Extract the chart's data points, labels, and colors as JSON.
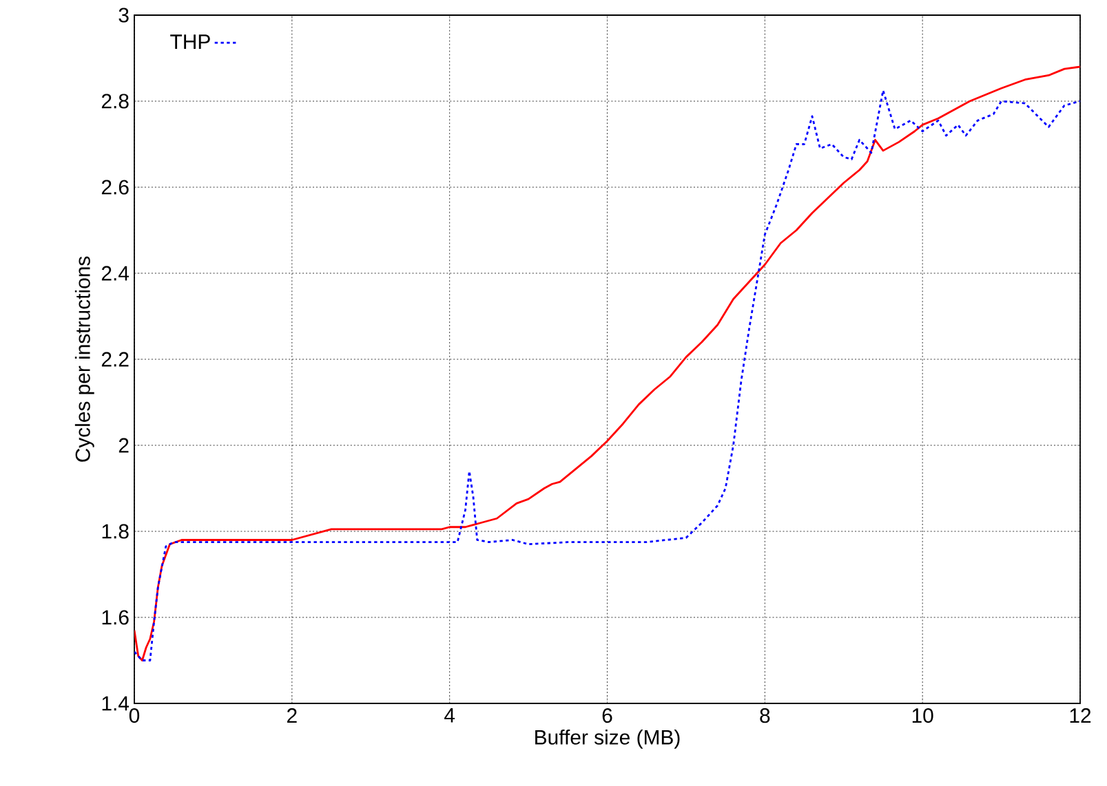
{
  "chart_data": {
    "type": "line",
    "xlabel": "Buffer size (MB)",
    "ylabel": "Cycles per instructions",
    "xlim": [
      0,
      12
    ],
    "ylim": [
      1.4,
      3
    ],
    "xticks": [
      0,
      2,
      4,
      6,
      8,
      10,
      12
    ],
    "yticks": [
      1.4,
      1.6,
      1.8,
      2,
      2.2,
      2.4,
      2.6,
      2.8,
      3
    ],
    "grid": true,
    "legend": "top left",
    "marker": "none",
    "series": [
      {
        "color": "#ff0000",
        "line_style": "solid",
        "x": [
          0,
          0.05,
          0.1,
          0.15,
          0.2,
          0.25,
          0.3,
          0.35,
          0.45,
          0.6,
          1,
          1.5,
          2,
          2.5,
          3,
          3.5,
          3.9,
          4,
          4.2,
          4.3,
          4.4,
          4.6,
          4.85,
          5,
          5.2,
          5.3,
          5.4,
          5.6,
          5.8,
          6,
          6.2,
          6.4,
          6.6,
          6.8,
          7,
          7.2,
          7.4,
          7.6,
          7.8,
          8,
          8.2,
          8.4,
          8.6,
          8.8,
          9,
          9.2,
          9.3,
          9.4,
          9.5,
          9.7,
          9.9,
          10,
          10.2,
          10.4,
          10.6,
          10.8,
          11,
          11.3,
          11.6,
          11.8,
          12
        ],
        "values": [
          1.57,
          1.51,
          1.5,
          1.53,
          1.55,
          1.59,
          1.67,
          1.72,
          1.77,
          1.78,
          1.78,
          1.78,
          1.78,
          1.805,
          1.805,
          1.805,
          1.805,
          1.81,
          1.81,
          1.815,
          1.82,
          1.83,
          1.865,
          1.875,
          1.9,
          1.91,
          1.915,
          1.945,
          1.975,
          2.01,
          2.05,
          2.095,
          2.13,
          2.16,
          2.205,
          2.24,
          2.28,
          2.34,
          2.38,
          2.42,
          2.47,
          2.5,
          2.54,
          2.575,
          2.61,
          2.64,
          2.66,
          2.71,
          2.685,
          2.705,
          2.73,
          2.745,
          2.76,
          2.78,
          2.8,
          2.815,
          2.83,
          2.85,
          2.86,
          2.875,
          2.88
        ]
      },
      {
        "name": "THP",
        "color": "#0000ff",
        "line_style": "dotted",
        "x": [
          0,
          0.1,
          0.2,
          0.25,
          0.3,
          0.4,
          0.5,
          1,
          2,
          3,
          3.9,
          4.1,
          4.2,
          4.25,
          4.3,
          4.35,
          4.5,
          4.8,
          5,
          5.5,
          6,
          6.5,
          7,
          7.2,
          7.4,
          7.5,
          7.6,
          7.7,
          7.8,
          7.9,
          8,
          8.15,
          8.3,
          8.4,
          8.5,
          8.6,
          8.7,
          8.85,
          9,
          9.1,
          9.2,
          9.35,
          9.5,
          9.65,
          9.85,
          10,
          10.2,
          10.3,
          10.45,
          10.55,
          10.7,
          10.9,
          11,
          11.3,
          11.6,
          11.8,
          12
        ],
        "values": [
          1.52,
          1.5,
          1.5,
          1.59,
          1.67,
          1.765,
          1.775,
          1.775,
          1.775,
          1.775,
          1.775,
          1.775,
          1.85,
          1.94,
          1.88,
          1.78,
          1.775,
          1.78,
          1.77,
          1.775,
          1.775,
          1.775,
          1.785,
          1.82,
          1.86,
          1.9,
          2.0,
          2.15,
          2.27,
          2.38,
          2.49,
          2.56,
          2.64,
          2.7,
          2.7,
          2.765,
          2.69,
          2.7,
          2.67,
          2.665,
          2.71,
          2.68,
          2.825,
          2.735,
          2.755,
          2.73,
          2.755,
          2.72,
          2.745,
          2.72,
          2.755,
          2.77,
          2.8,
          2.795,
          2.74,
          2.79,
          2.8
        ]
      }
    ]
  }
}
